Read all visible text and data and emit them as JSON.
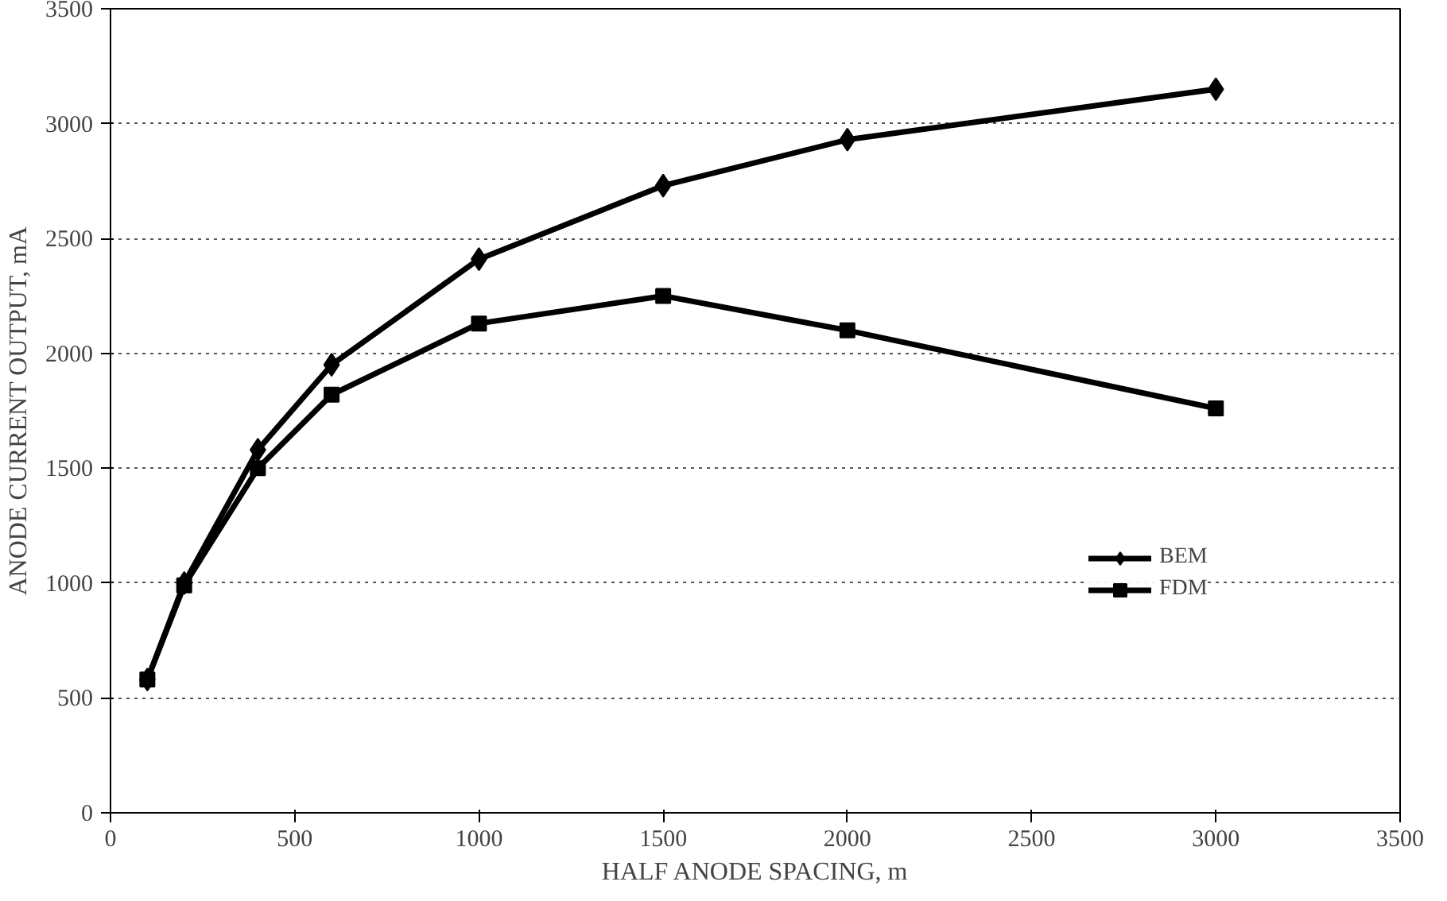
{
  "chart_data": {
    "type": "line",
    "xlabel": "HALF ANODE SPACING, m",
    "ylabel": "ANODE CURRENT OUTPUT, mA",
    "x": [
      100,
      200,
      400,
      600,
      1000,
      1500,
      2000,
      3000
    ],
    "series": [
      {
        "name": "BEM",
        "color": "#000000",
        "marker": "diamond",
        "values": [
          580,
          1000,
          1580,
          1950,
          2410,
          2730,
          2930,
          3150
        ]
      },
      {
        "name": "FDM",
        "color": "#000000",
        "marker": "square",
        "values": [
          580,
          990,
          1500,
          1820,
          2130,
          2250,
          2100,
          1760
        ]
      }
    ],
    "xlim": [
      0,
      3500
    ],
    "xticks": [
      0,
      500,
      1000,
      1500,
      2000,
      2500,
      3000,
      3500
    ],
    "ylim": [
      0,
      3500
    ],
    "yticks": [
      0,
      500,
      1000,
      1500,
      2000,
      2500,
      3000,
      3500
    ],
    "grid": "y",
    "legend": "right",
    "line_style": "solid"
  }
}
